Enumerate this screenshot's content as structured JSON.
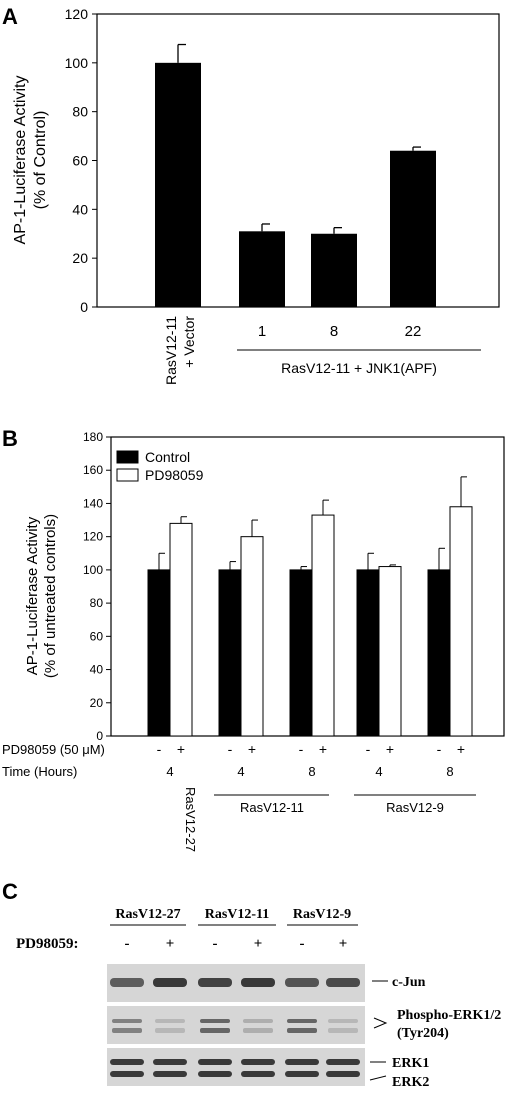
{
  "panels": {
    "a_letter": "A",
    "b_letter": "B",
    "c_letter": "C"
  },
  "chart_data": [
    {
      "type": "bar",
      "panel": "A",
      "ylabel": "AP-1-Luciferase Activity",
      "ylabel2": "(% of Control)",
      "ylim": [
        0,
        120
      ],
      "yticks": [
        0,
        20,
        40,
        60,
        80,
        100,
        120
      ],
      "categories": [
        "RasV12-11 + Vector",
        "1",
        "8",
        "22"
      ],
      "category_lines": [
        [
          "RasV12-11",
          "+ Vector"
        ]
      ],
      "values": [
        100,
        31,
        30,
        64
      ],
      "errors": [
        7.5,
        3,
        2.5,
        1.5
      ],
      "group_label": "RasV12-11 + JNK1(APF)",
      "colors": {
        "bar": "#000000"
      },
      "grid": false
    },
    {
      "type": "bar",
      "panel": "B",
      "ylabel": "AP-1-Luciferase Activity",
      "ylabel2": "(% of untreated controls)",
      "ylim": [
        0,
        180
      ],
      "yticks": [
        0,
        20,
        40,
        60,
        80,
        100,
        120,
        140,
        160,
        180
      ],
      "series": [
        {
          "name": "Control",
          "values": [
            100,
            100,
            100,
            100,
            100
          ],
          "errors": [
            10,
            5,
            2,
            10,
            13
          ],
          "color": "#000000"
        },
        {
          "name": "PD98059",
          "values": [
            128,
            120,
            133,
            102,
            138
          ],
          "errors": [
            4,
            10,
            9,
            1,
            18
          ],
          "color": "#ffffff"
        }
      ],
      "legend_position": "top-left",
      "row_labels": {
        "treatment": "PD98059 (50 μM)",
        "time": "Time (Hours)"
      },
      "signs": [
        "-",
        "+"
      ],
      "times": [
        "4",
        "4",
        "8",
        "4",
        "8"
      ],
      "cell_lines": [
        {
          "name": "RasV12-27",
          "rotated": true
        },
        {
          "name": "RasV12-11",
          "rotated": false
        },
        {
          "name": "RasV12-9",
          "rotated": false
        }
      ],
      "grid": false
    }
  ],
  "blot": {
    "groups": [
      "RasV12-27",
      "RasV12-11",
      "RasV12-9"
    ],
    "treatment_label": "PD98059:",
    "signs": [
      "-",
      "+",
      "-",
      "+",
      "-",
      "+"
    ],
    "rows": [
      {
        "label": "c-Jun",
        "intensity": [
          0.65,
          0.85,
          0.8,
          0.85,
          0.7,
          0.75
        ]
      },
      {
        "label": "Phospho-ERK1/2",
        "label2": "(Tyr204)",
        "intensity": [
          0.45,
          0.15,
          0.6,
          0.2,
          0.6,
          0.15
        ]
      },
      {
        "label": "ERK1",
        "label2": "ERK2",
        "intensity": [
          0.85,
          0.85,
          0.85,
          0.85,
          0.85,
          0.85
        ]
      }
    ]
  }
}
